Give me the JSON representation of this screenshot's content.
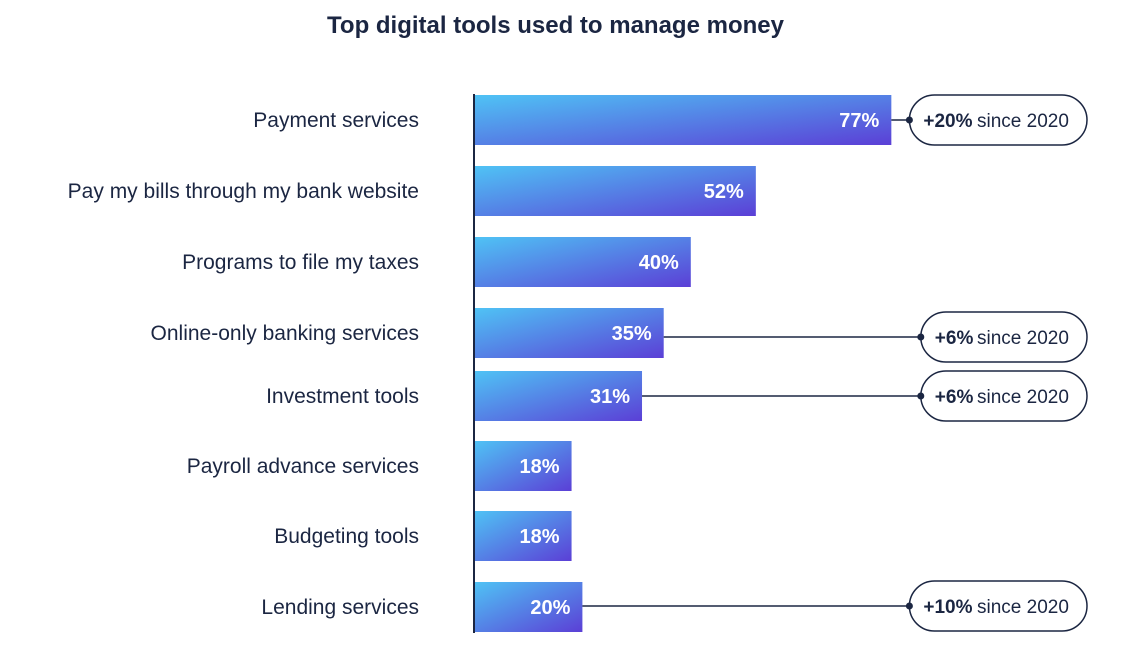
{
  "chart_data": {
    "type": "bar",
    "orientation": "horizontal",
    "title": "Top digital tools used to manage money",
    "categories": [
      "Payment services",
      "Pay my bills through my bank website",
      "Programs to file my taxes",
      "Online-only banking services",
      "Investment tools",
      "Payroll advance services",
      "Budgeting tools",
      "Lending services"
    ],
    "values": [
      77,
      52,
      40,
      35,
      31,
      18,
      18,
      20
    ],
    "value_labels": [
      "77%",
      "52%",
      "40%",
      "35%",
      "31%",
      "18%",
      "18%",
      "20%"
    ],
    "annotations": [
      {
        "category": "Payment services",
        "change": "+20%",
        "text": "since 2020"
      },
      {
        "category": "Online-only banking services",
        "change": "+6%",
        "text": "since 2020"
      },
      {
        "category": "Investment tools",
        "change": "+6%",
        "text": "since 2020"
      },
      {
        "category": "Lending services",
        "change": "+10%",
        "text": "since 2020"
      }
    ],
    "grid": false,
    "legend": "none",
    "colors": {
      "bar_start": "#4fc3f5",
      "bar_end": "#5b3fd6",
      "text": "#1b2642",
      "axis": "#1b2642"
    }
  }
}
